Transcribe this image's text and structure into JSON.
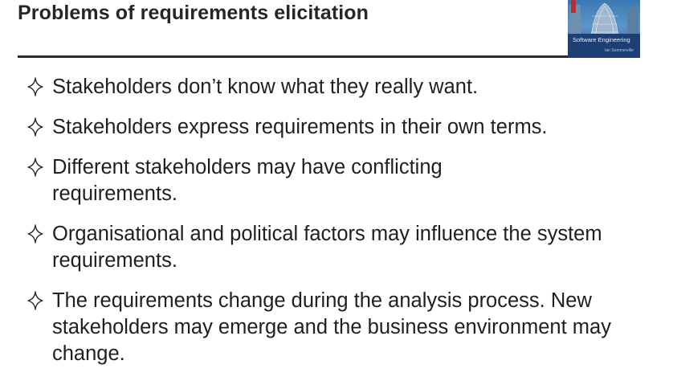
{
  "slide": {
    "title": "Problems of requirements elicitation"
  },
  "book_cover": {
    "title": "Software Engineering",
    "author": "Ian Sommerville",
    "colors": {
      "sky": "#5d95c9",
      "band": "#1d3f73"
    }
  },
  "bullets": [
    {
      "icon": "four-pointed-star-icon",
      "text": "Stakeholders don’t know what they really want."
    },
    {
      "icon": "four-pointed-star-icon",
      "text": "Stakeholders express requirements in their own terms."
    },
    {
      "icon": "four-pointed-star-icon",
      "text": "Different stakeholders may have conflicting requirements."
    },
    {
      "icon": "four-pointed-star-icon",
      "text": "Organisational and political factors may influence the system requirements."
    },
    {
      "icon": "four-pointed-star-icon",
      "text": "The requirements change during the analysis process. New stakeholders may emerge and the business environment may change."
    }
  ],
  "colors": {
    "title_text": "#262626",
    "body_text": "#1f1f1f",
    "rule": "#2b2b2b"
  }
}
